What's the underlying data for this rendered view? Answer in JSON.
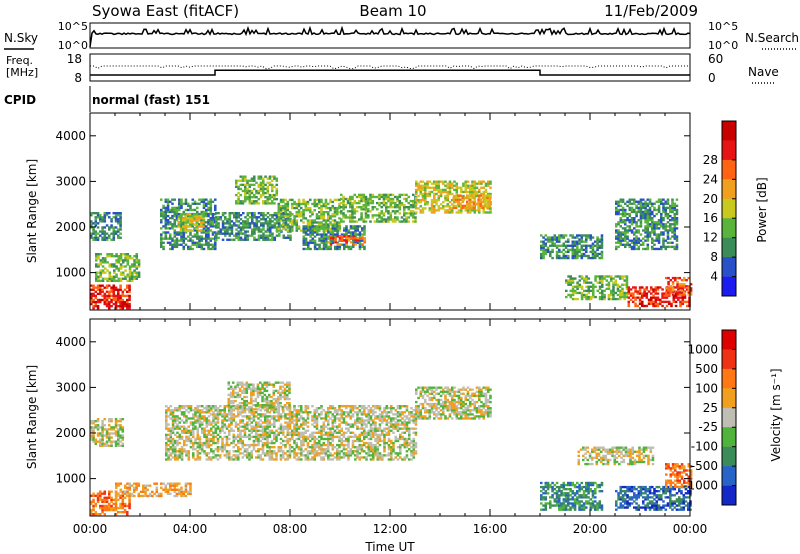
{
  "header": {
    "station": "Syowa East (fitACF)",
    "beam": "Beam 10",
    "date": "11/Feb/2009"
  },
  "noise_panel": {
    "left_label": "N.Sky",
    "right_label": "N.Search",
    "left_ticks": [
      "10^5",
      "10^0"
    ],
    "right_ticks": [
      "10^5",
      "10^0"
    ]
  },
  "freq_panel": {
    "left_label_line1": "Freq.",
    "left_label_line2": "[MHz]",
    "right_label": "Nave",
    "left_ticks": [
      "18",
      "8"
    ],
    "right_ticks": [
      "60",
      "0"
    ],
    "freq_steps": [
      {
        "from_hour": 0,
        "to_hour": 5,
        "mhz": 10.5
      },
      {
        "from_hour": 5,
        "to_hour": 18,
        "mhz": 12.5
      },
      {
        "from_hour": 18,
        "to_hour": 24,
        "mhz": 10.5
      }
    ]
  },
  "cpid": {
    "label": "CPID",
    "value": "normal (fast) 151"
  },
  "chart_data": [
    {
      "type": "heatmap",
      "name": "power",
      "ylabel": "Slant Range [km]",
      "ylim": [
        180,
        4500
      ],
      "yticks": [
        "1000",
        "2000",
        "3000",
        "4000"
      ],
      "xlim": [
        0,
        24
      ],
      "colorbar": {
        "label": "Power [dB]",
        "ticks": [
          "4",
          "8",
          "12",
          "16",
          "20",
          "24",
          "28"
        ],
        "colors": [
          "#1c1cf0",
          "#2850c8",
          "#3c8c5a",
          "#5ab43c",
          "#c8c81e",
          "#f0a01e",
          "#ff6414",
          "#e61414",
          "#c80000"
        ]
      },
      "regions": [
        {
          "t0": 0.0,
          "t1": 1.6,
          "r0": 200,
          "r1": 700,
          "level": 7
        },
        {
          "t0": 0.0,
          "t1": 1.2,
          "r0": 1700,
          "r1": 2300,
          "level": 2
        },
        {
          "t0": 0.2,
          "t1": 2.0,
          "r0": 800,
          "r1": 1400,
          "level": 3
        },
        {
          "t0": 2.8,
          "t1": 5.0,
          "r0": 1500,
          "r1": 2600,
          "level": 2
        },
        {
          "t0": 3.5,
          "t1": 4.5,
          "r0": 1900,
          "r1": 2300,
          "level": 4
        },
        {
          "t0": 5.0,
          "t1": 8.0,
          "r0": 1700,
          "r1": 2300,
          "level": 2
        },
        {
          "t0": 5.8,
          "t1": 7.5,
          "r0": 2500,
          "r1": 3100,
          "level": 3
        },
        {
          "t0": 7.5,
          "t1": 10.0,
          "r0": 1900,
          "r1": 2600,
          "level": 3
        },
        {
          "t0": 8.5,
          "t1": 11.0,
          "r0": 1500,
          "r1": 2000,
          "level": 2
        },
        {
          "t0": 9.5,
          "t1": 11.0,
          "r0": 1600,
          "r1": 1800,
          "level": 6
        },
        {
          "t0": 10.0,
          "t1": 13.0,
          "r0": 2100,
          "r1": 2700,
          "level": 3
        },
        {
          "t0": 13.0,
          "t1": 16.0,
          "r0": 2300,
          "r1": 3000,
          "level": 4
        },
        {
          "t0": 14.5,
          "t1": 16.0,
          "r0": 2400,
          "r1": 2700,
          "level": 5
        },
        {
          "t0": 18.0,
          "t1": 20.5,
          "r0": 1300,
          "r1": 1800,
          "level": 2
        },
        {
          "t0": 19.0,
          "t1": 21.5,
          "r0": 400,
          "r1": 900,
          "level": 3
        },
        {
          "t0": 21.0,
          "t1": 23.5,
          "r0": 1500,
          "r1": 2600,
          "level": 2
        },
        {
          "t0": 21.5,
          "t1": 24.0,
          "r0": 250,
          "r1": 700,
          "level": 7
        },
        {
          "t0": 23.0,
          "t1": 24.0,
          "r0": 500,
          "r1": 900,
          "level": 6
        }
      ]
    },
    {
      "type": "heatmap",
      "name": "velocity",
      "ylabel": "Slant Range [km]",
      "ylim": [
        180,
        4500
      ],
      "yticks": [
        "1000",
        "2000",
        "3000",
        "4000"
      ],
      "xlim": [
        0,
        24
      ],
      "xlabel": "Time UT",
      "xticks": [
        "00:00",
        "04:00",
        "08:00",
        "12:00",
        "16:00",
        "20:00",
        "00:00"
      ],
      "colorbar": {
        "label": "Velocity [m s⁻¹]",
        "ticks": [
          "1000",
          "500",
          "100",
          "25",
          "-25",
          "-100",
          "-500",
          "-1000"
        ],
        "colors": [
          "#1428c8",
          "#2864c8",
          "#3c8c5a",
          "#50b43c",
          "#bebeb4",
          "#f0a01e",
          "#ff7814",
          "#f03214",
          "#dc0000"
        ]
      },
      "regions": [
        {
          "t0": 0.0,
          "t1": 1.6,
          "r0": 200,
          "r1": 700,
          "level": 6
        },
        {
          "t0": 0.0,
          "t1": 1.3,
          "r0": 1700,
          "r1": 2300,
          "level": 4
        },
        {
          "t0": 1.0,
          "t1": 4.0,
          "r0": 600,
          "r1": 900,
          "level": 5
        },
        {
          "t0": 3.0,
          "t1": 13.0,
          "r0": 1400,
          "r1": 2600,
          "level": 4
        },
        {
          "t0": 5.5,
          "t1": 8.0,
          "r0": 2500,
          "r1": 3100,
          "level": 4
        },
        {
          "t0": 13.0,
          "t1": 16.0,
          "r0": 2300,
          "r1": 3000,
          "level": 4
        },
        {
          "t0": 18.0,
          "t1": 20.5,
          "r0": 300,
          "r1": 900,
          "level": 2
        },
        {
          "t0": 19.5,
          "t1": 22.5,
          "r0": 1300,
          "r1": 1700,
          "level": 4
        },
        {
          "t0": 21.0,
          "t1": 24.0,
          "r0": 300,
          "r1": 800,
          "level": 1
        },
        {
          "t0": 23.0,
          "t1": 24.0,
          "r0": 800,
          "r1": 1300,
          "level": 6
        }
      ]
    }
  ]
}
